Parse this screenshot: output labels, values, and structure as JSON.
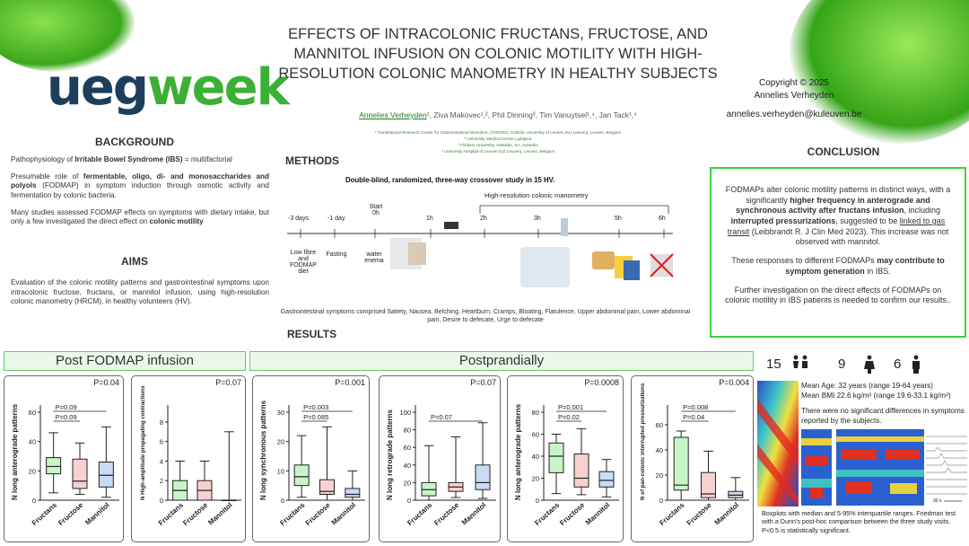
{
  "header": {
    "logo_ueg": "ueg",
    "logo_week": "week",
    "title": "EFFECTS OF INTRACOLONIC FRUCTANS, FRUCTOSE, AND MANNITOL INFUSION ON COLONIC MOTILITY WITH HIGH-RESOLUTION COLONIC MANOMETRY IN HEALTHY SUBJECTS",
    "authors": "Annelies Verheyden¹, Ziva Makovec¹,², Phil Dinning³, Tim Vanuytsel¹,⁴, Jan Tack¹,⁴",
    "author_first": "Annelies Verheyden",
    "author_rest": "¹, Ziva Makovec¹,², Phil Dinning³, Tim Vanuytsel¹,⁴, Jan Tack¹,⁴",
    "affiliations": [
      "¹ Translational Research Center for Gastrointestinal Disorders, (TARGID), Catholic University of Leuven (KU Leuven), Leuven, Belgium",
      "² University Medical Centre Ljubljana",
      "³ Flinders University, Adelaide, SA, Australia",
      "⁴ University Hospital of Leuven (UZ Leuven), Leuven, Belgium"
    ],
    "copyright": "Copyright © 2025",
    "copyright_name": "Annelies Verheyden",
    "email": "annelies.verheyden@kuleuven.be"
  },
  "background": {
    "heading": "BACKGROUND",
    "p1_pre": "Pathophysiology of ",
    "p1_bold": "Irritable Bowel Syndrome (IBS)",
    "p1_post": " = multifactorial",
    "p2_pre": "Presumable role of ",
    "p2_bold": "fermentable, oligo, di- and monosaccharides and polyols",
    "p2_post": " (FODMAP) in symptom induction through osmotic activity and fermentation by colonic bacteria.",
    "p3_pre": "Many studies assessed FODMAP effects on symptoms with dietary intake, but only a few investigated the direct effect on ",
    "p3_bold": "colonic motility"
  },
  "aims": {
    "heading": "AIMS",
    "text": "Evaluation of the colonic motility patterns and gastrointestinal symptoms upon intracolonic fructose, fructans, or mannitol infusion, using high-resolution colonic manometry (HRCM), in healthy volunteers (HV)."
  },
  "methods": {
    "heading": "METHODS",
    "subtitle": "Double-blind, randomized, three-way crossover study in 15 HV.",
    "hrcm_label": "High-resolution colonic manometry",
    "timepoints": [
      "-3 days",
      "-1 day",
      "Start 0h",
      "1h",
      "2h",
      "3h",
      "5h",
      "6h"
    ],
    "steps": [
      "Low fibre and FODMAP diet",
      "Fasting",
      "water enema"
    ],
    "symptoms": "Gastrointestinal symptoms comprised Satiety, Nausea, Belching, Heartburn, Cramps, Bloating, Flatulence,  Upper abdominal pain, Lower abdominal pain, Desire to defecate, Urge to defecate"
  },
  "results": {
    "heading": "RESULTS",
    "post_label": "Post FODMAP infusion",
    "postprandial_label": "Postprandially"
  },
  "conclusion": {
    "heading": "CONCLUSION",
    "p1_a": "FODMAPs alter colonic motility patterns in distinct ways, with a significantly ",
    "p1_b": "higher frequency in anterograde and synchronous activity after fructans infusion",
    "p1_c": ", including ",
    "p1_d": "interrupted pressurizations",
    "p1_e": ", suggested to be ",
    "p1_f": "linked to gas transit",
    "p1_g": " (Leibbrandt R. J Clin Med 2023). This increase was not observed with mannitol.",
    "p2_a": "These responses to different FODMAPs ",
    "p2_b": "may contribute to symptom generation",
    "p2_c": " in IBS.",
    "p3": "Further investigation on the direct effects of FODMAPs on colonic motility in IBS patients is needed to confirm our results.."
  },
  "demographics": {
    "total": "15",
    "female": "9",
    "male": "6",
    "age": "Mean Age: 32 years (range 19-64 years)",
    "bmi": "Mean BMI 22.6 kg/m² (range 19.6-33.1 kg/m²)",
    "note": "There were no significant differences in symptoms reported by the subjects.",
    "scale": "30 s"
  },
  "footnote": "Boxplots with median and 5-95% interquartile ranges. Friedman test with a Dunn's post-hoc comparison between the three study visits. P<0.5 is statistically significant.",
  "colors": {
    "fructans": "#c8f5c8",
    "fructose": "#f8d0d0",
    "mannitol": "#c8dcf5",
    "accent": "#3cb035"
  },
  "chart_data": [
    {
      "type": "box",
      "ylabel": "N long anterograde patterns",
      "categories": [
        "Fructans",
        "Fructose",
        "Mannitol"
      ],
      "ylim": [
        0,
        60
      ],
      "yticks": [
        0,
        20,
        40,
        60
      ],
      "p_overall": "P=0.04",
      "boxes": [
        {
          "min": 5,
          "q1": 18,
          "median": 23,
          "q3": 29,
          "max": 46
        },
        {
          "min": 4,
          "q1": 8,
          "median": 13,
          "q3": 28,
          "max": 39
        },
        {
          "min": 2,
          "q1": 9,
          "median": 17,
          "q3": 26,
          "max": 50
        }
      ],
      "comparisons": [
        {
          "label": "P=0.09",
          "from": 0,
          "to": 1
        },
        {
          "label": "P=0.09",
          "from": 0,
          "to": 2
        }
      ]
    },
    {
      "type": "box",
      "ylabel": "N High-amplitude propagating contractions",
      "categories": [
        "Fructans",
        "Fructose",
        "Mannitol"
      ],
      "ylim": [
        0,
        9
      ],
      "yticks": [
        0,
        2,
        4,
        6,
        8
      ],
      "p_overall": "P=0.07",
      "boxes": [
        {
          "min": 0,
          "q1": 0,
          "median": 1,
          "q3": 2,
          "max": 4
        },
        {
          "min": 0,
          "q1": 0,
          "median": 1,
          "q3": 2,
          "max": 4
        },
        {
          "min": 0,
          "q1": 0,
          "median": 0,
          "q3": 0,
          "max": 7
        }
      ],
      "comparisons": []
    },
    {
      "type": "box",
      "ylabel": "N long synchronous patterns",
      "categories": [
        "Fructans",
        "Fructose",
        "Mannitol"
      ],
      "ylim": [
        0,
        30
      ],
      "yticks": [
        0,
        10,
        20,
        30
      ],
      "p_overall": "P=0.001",
      "boxes": [
        {
          "min": 1,
          "q1": 5,
          "median": 8,
          "q3": 12,
          "max": 22
        },
        {
          "min": 0,
          "q1": 2,
          "median": 3,
          "q3": 7,
          "max": 25
        },
        {
          "min": 0,
          "q1": 1,
          "median": 2,
          "q3": 4,
          "max": 10
        }
      ],
      "comparisons": [
        {
          "label": "P=0.085",
          "from": 0,
          "to": 1
        },
        {
          "label": "P=0.003",
          "from": 0,
          "to": 2
        }
      ]
    },
    {
      "type": "box",
      "ylabel": "N long retrograde patterns",
      "categories": [
        "Fructans",
        "Fructose",
        "Mannitol"
      ],
      "ylim": [
        0,
        100
      ],
      "yticks": [
        0,
        20,
        40,
        60,
        80,
        100
      ],
      "p_overall": "P=0.07",
      "boxes": [
        {
          "min": 0,
          "q1": 5,
          "median": 12,
          "q3": 20,
          "max": 62
        },
        {
          "min": 3,
          "q1": 10,
          "median": 15,
          "q3": 20,
          "max": 72
        },
        {
          "min": 2,
          "q1": 12,
          "median": 20,
          "q3": 40,
          "max": 88
        }
      ],
      "comparisons": [
        {
          "label": "P=0.07",
          "from": 0,
          "to": 2
        }
      ]
    },
    {
      "type": "box",
      "ylabel": "N long anterograde patterns",
      "categories": [
        "Fructans",
        "Fructose",
        "Mannitol"
      ],
      "ylim": [
        0,
        80
      ],
      "yticks": [
        0,
        20,
        40,
        60,
        80
      ],
      "p_overall": "P=0.0008",
      "boxes": [
        {
          "min": 6,
          "q1": 25,
          "median": 40,
          "q3": 52,
          "max": 60
        },
        {
          "min": 5,
          "q1": 12,
          "median": 20,
          "q3": 42,
          "max": 65
        },
        {
          "min": 3,
          "q1": 12,
          "median": 18,
          "q3": 26,
          "max": 37
        }
      ],
      "comparisons": [
        {
          "label": "P=0.02",
          "from": 0,
          "to": 1
        },
        {
          "label": "P=0.001",
          "from": 0,
          "to": 2
        }
      ]
    },
    {
      "type": "box",
      "ylabel": "N of pan-colonic interrupted pressurizations",
      "categories": [
        "Fructans",
        "Fructose",
        "Mannitol"
      ],
      "ylim": [
        0,
        70
      ],
      "yticks": [
        0,
        20,
        40,
        60
      ],
      "p_overall": "P=0.004",
      "boxes": [
        {
          "min": 0,
          "q1": 8,
          "median": 12,
          "q3": 50,
          "max": 55
        },
        {
          "min": 0,
          "q1": 2,
          "median": 5,
          "q3": 22,
          "max": 39
        },
        {
          "min": 0,
          "q1": 2,
          "median": 4,
          "q3": 7,
          "max": 18
        }
      ],
      "comparisons": [
        {
          "label": "P=0.04",
          "from": 0,
          "to": 1
        },
        {
          "label": "P=0.008",
          "from": 0,
          "to": 2
        }
      ]
    }
  ]
}
